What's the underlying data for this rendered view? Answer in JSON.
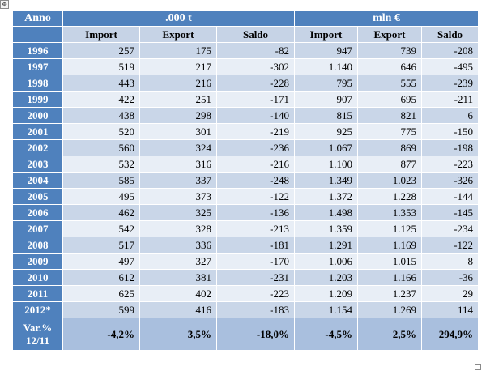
{
  "handles": {
    "move_glyph": "✥"
  },
  "table": {
    "year_header": "Anno",
    "group_headers": [
      ".000 t",
      "mln €"
    ],
    "sub_headers": [
      "Import",
      "Export",
      "Saldo",
      "Import",
      "Export",
      "Saldo"
    ],
    "rows": [
      {
        "year": "1996",
        "cells": [
          "257",
          "175",
          "-82",
          "947",
          "739",
          "-208"
        ]
      },
      {
        "year": "1997",
        "cells": [
          "519",
          "217",
          "-302",
          "1.140",
          "646",
          "-495"
        ]
      },
      {
        "year": "1998",
        "cells": [
          "443",
          "216",
          "-228",
          "795",
          "555",
          "-239"
        ]
      },
      {
        "year": "1999",
        "cells": [
          "422",
          "251",
          "-171",
          "907",
          "695",
          "-211"
        ]
      },
      {
        "year": "2000",
        "cells": [
          "438",
          "298",
          "-140",
          "815",
          "821",
          "6"
        ]
      },
      {
        "year": "2001",
        "cells": [
          "520",
          "301",
          "-219",
          "925",
          "775",
          "-150"
        ]
      },
      {
        "year": "2002",
        "cells": [
          "560",
          "324",
          "-236",
          "1.067",
          "869",
          "-198"
        ]
      },
      {
        "year": "2003",
        "cells": [
          "532",
          "316",
          "-216",
          "1.100",
          "877",
          "-223"
        ]
      },
      {
        "year": "2004",
        "cells": [
          "585",
          "337",
          "-248",
          "1.349",
          "1.023",
          "-326"
        ]
      },
      {
        "year": "2005",
        "cells": [
          "495",
          "373",
          "-122",
          "1.372",
          "1.228",
          "-144"
        ]
      },
      {
        "year": "2006",
        "cells": [
          "462",
          "325",
          "-136",
          "1.498",
          "1.353",
          "-145"
        ]
      },
      {
        "year": "2007",
        "cells": [
          "542",
          "328",
          "-213",
          "1.359",
          "1.125",
          "-234"
        ]
      },
      {
        "year": "2008",
        "cells": [
          "517",
          "336",
          "-181",
          "1.291",
          "1.169",
          "-122"
        ]
      },
      {
        "year": "2009",
        "cells": [
          "497",
          "327",
          "-170",
          "1.006",
          "1.015",
          "8"
        ]
      },
      {
        "year": "2010",
        "cells": [
          "612",
          "381",
          "-231",
          "1.203",
          "1.166",
          "-36"
        ]
      },
      {
        "year": "2011",
        "cells": [
          "625",
          "402",
          "-223",
          "1.209",
          "1.237",
          "29"
        ]
      },
      {
        "year": "2012*",
        "cells": [
          "599",
          "416",
          "-183",
          "1.154",
          "1.269",
          "114"
        ]
      }
    ],
    "variation": {
      "label_line1": "Var.%",
      "label_line2": "12/11",
      "cells": [
        "-4,2%",
        "3,5%",
        "-18,0%",
        "-4,5%",
        "2,5%",
        "294,9%"
      ]
    }
  }
}
